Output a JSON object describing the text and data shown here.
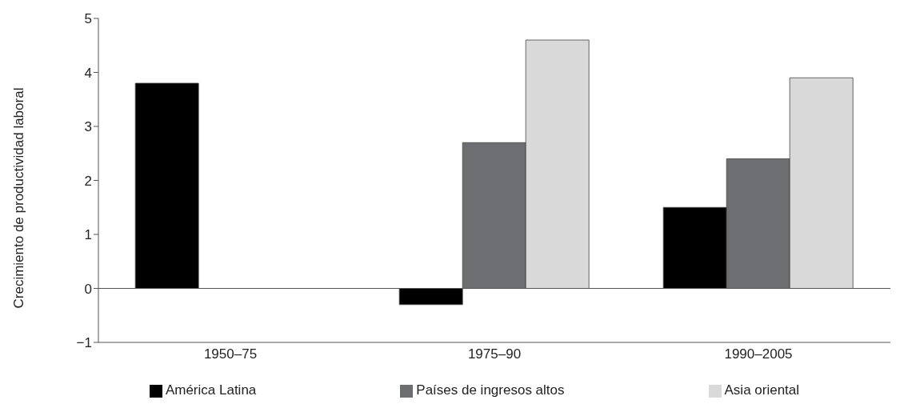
{
  "chart_data": {
    "type": "bar",
    "ylabel": "Crecimiento de productividad laboral",
    "categories": [
      "1950–75",
      "1975–90",
      "1990–2005"
    ],
    "series": [
      {
        "name": "América Latina",
        "color": "#000000",
        "values": [
          3.8,
          -0.3,
          1.5
        ]
      },
      {
        "name": "Países de ingresos altos",
        "color": "#6d6e71",
        "values": [
          null,
          2.7,
          2.4
        ]
      },
      {
        "name": "Asia oriental",
        "color": "#d9d9d9",
        "values": [
          null,
          4.6,
          3.9
        ]
      }
    ],
    "ylim": [
      -1,
      5
    ],
    "yticks": [
      {
        "value": -1,
        "label": "−1"
      },
      0,
      1,
      2,
      3,
      4,
      5
    ],
    "ref_lines": [
      {
        "axis": "y",
        "value": 0,
        "color": "#555555"
      }
    ],
    "legend": "bottom"
  }
}
